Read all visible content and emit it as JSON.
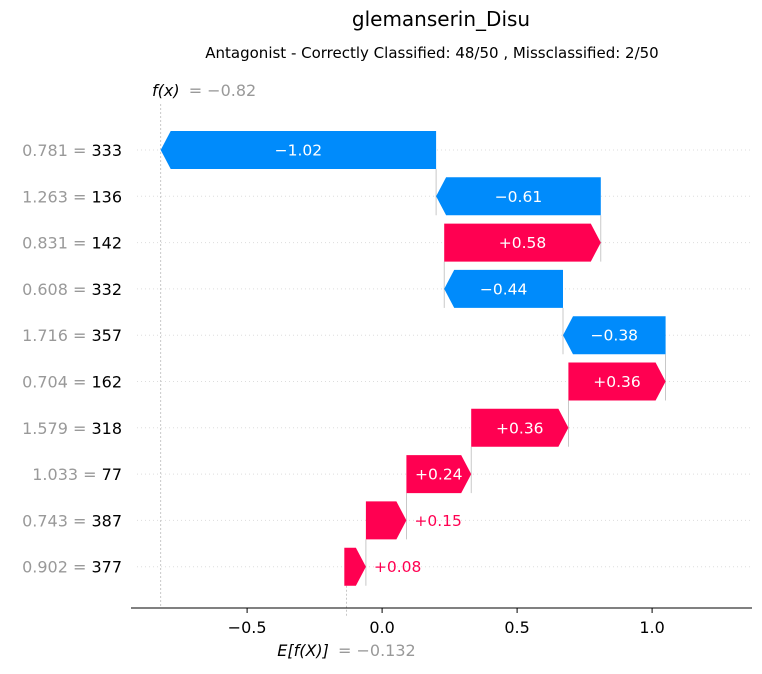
{
  "chart_data": {
    "type": "waterfall",
    "title": "glemanserin_Disu",
    "subtitle": "Antagonist - Correctly Classified: 48/50 , Missclassified: 2/50",
    "fx_label": "f(x)",
    "fx_text": "= −0.82",
    "fx_value": -0.82,
    "base_label": "E[f(X)]",
    "base_text": "= −0.132",
    "base_value": -0.132,
    "xlim": [
      -0.93,
      1.37
    ],
    "xticks": [
      {
        "value": -0.5,
        "label": "−0.5"
      },
      {
        "value": 0.0,
        "label": "0.0"
      },
      {
        "value": 0.5,
        "label": "0.5"
      },
      {
        "value": 1.0,
        "label": "1.0"
      }
    ],
    "features": [
      {
        "value": "0.781",
        "name": "333",
        "shap": -1.02,
        "label": "−1.02"
      },
      {
        "value": "1.263",
        "name": "136",
        "shap": -0.61,
        "label": "−0.61"
      },
      {
        "value": "0.831",
        "name": "142",
        "shap": 0.58,
        "label": "+0.58"
      },
      {
        "value": "0.608",
        "name": "332",
        "shap": -0.44,
        "label": "−0.44"
      },
      {
        "value": "1.716",
        "name": "357",
        "shap": -0.38,
        "label": "−0.38"
      },
      {
        "value": "0.704",
        "name": "162",
        "shap": 0.36,
        "label": "+0.36"
      },
      {
        "value": "1.579",
        "name": "318",
        "shap": 0.36,
        "label": "+0.36"
      },
      {
        "value": "1.033",
        "name": "77",
        "shap": 0.24,
        "label": "+0.24"
      },
      {
        "value": "0.743",
        "name": "387",
        "shap": 0.15,
        "label": "+0.15"
      },
      {
        "value": "0.902",
        "name": "377",
        "shap": 0.08,
        "label": "+0.08"
      }
    ],
    "colors": {
      "positive": "#ff0051",
      "negative": "#008bfb"
    }
  }
}
